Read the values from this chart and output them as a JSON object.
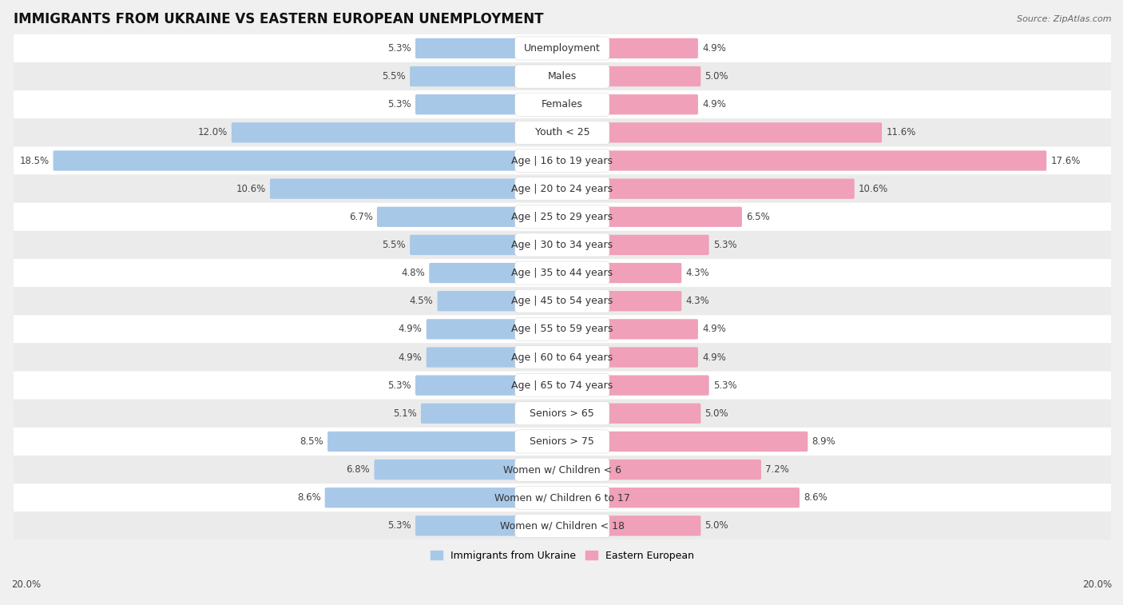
{
  "title": "IMMIGRANTS FROM UKRAINE VS EASTERN EUROPEAN UNEMPLOYMENT",
  "source": "Source: ZipAtlas.com",
  "categories": [
    "Unemployment",
    "Males",
    "Females",
    "Youth < 25",
    "Age | 16 to 19 years",
    "Age | 20 to 24 years",
    "Age | 25 to 29 years",
    "Age | 30 to 34 years",
    "Age | 35 to 44 years",
    "Age | 45 to 54 years",
    "Age | 55 to 59 years",
    "Age | 60 to 64 years",
    "Age | 65 to 74 years",
    "Seniors > 65",
    "Seniors > 75",
    "Women w/ Children < 6",
    "Women w/ Children 6 to 17",
    "Women w/ Children < 18"
  ],
  "left_values": [
    5.3,
    5.5,
    5.3,
    12.0,
    18.5,
    10.6,
    6.7,
    5.5,
    4.8,
    4.5,
    4.9,
    4.9,
    5.3,
    5.1,
    8.5,
    6.8,
    8.6,
    5.3
  ],
  "right_values": [
    4.9,
    5.0,
    4.9,
    11.6,
    17.6,
    10.6,
    6.5,
    5.3,
    4.3,
    4.3,
    4.9,
    4.9,
    5.3,
    5.0,
    8.9,
    7.2,
    8.6,
    5.0
  ],
  "left_color": "#A8C8E8",
  "right_color": "#F0A0B8",
  "row_light": "#FFFFFF",
  "row_dark": "#EBEBEB",
  "background_color": "#F0F0F0",
  "max_val": 20.0,
  "left_label": "Immigrants from Ukraine",
  "right_label": "Eastern European",
  "title_fontsize": 12,
  "label_fontsize": 9,
  "value_fontsize": 8.5,
  "axis_label_fontsize": 8.5
}
